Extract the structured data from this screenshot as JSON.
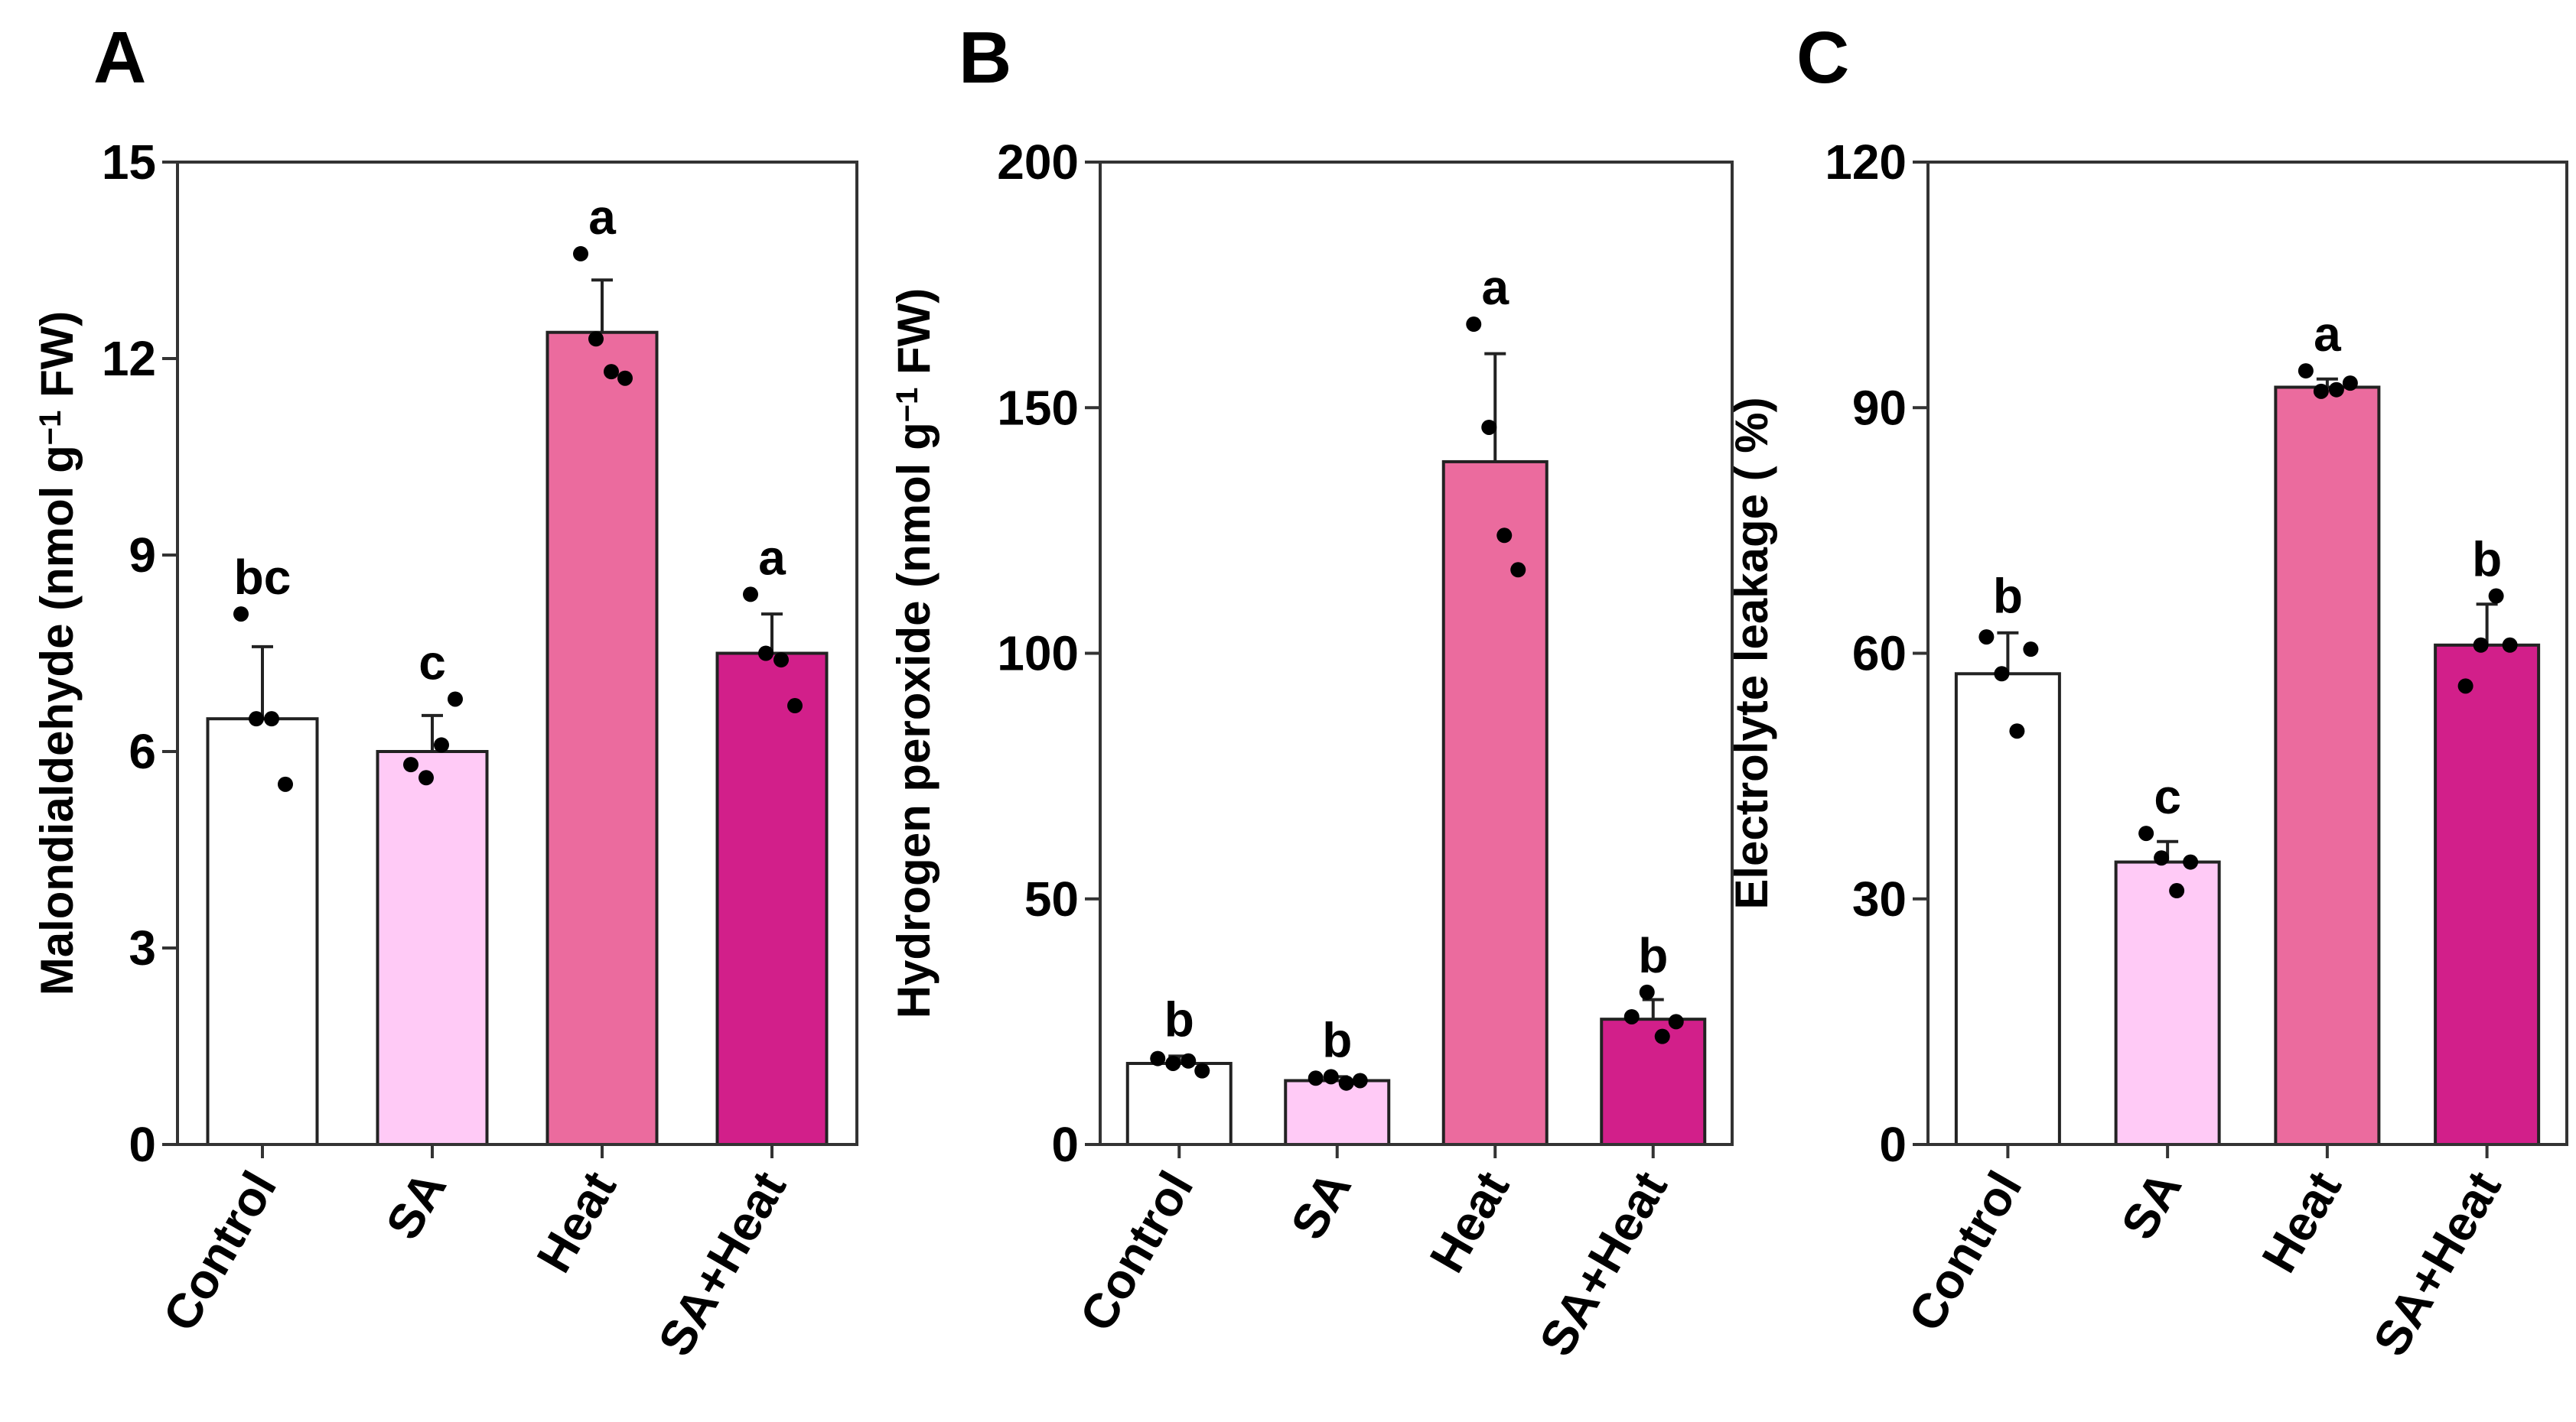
{
  "chart_data": [
    {
      "panel": "A",
      "type": "bar",
      "ylabel_parts": [
        "Malondialdehyde (nmol g",
        "−1",
        " FW)"
      ],
      "categories": [
        "Control",
        "SA",
        "Heat",
        "SA+Heat"
      ],
      "values": [
        6.5,
        6.0,
        12.4,
        7.5
      ],
      "errors": [
        1.1,
        0.55,
        0.8,
        0.6
      ],
      "letters": [
        "bc",
        "c",
        "a",
        "a"
      ],
      "points": [
        [
          8.1,
          6.5,
          6.5,
          5.5
        ],
        [
          5.8,
          5.6,
          6.1,
          6.8
        ],
        [
          13.6,
          12.3,
          11.8,
          11.7
        ],
        [
          8.4,
          7.5,
          7.4,
          6.7
        ]
      ],
      "colors": [
        "#ffffff",
        "#ffcaf6",
        "#eb6b9e",
        "#d21f8a"
      ],
      "ylim": [
        0,
        15
      ],
      "yticks": [
        0,
        3,
        6,
        9,
        12,
        15
      ]
    },
    {
      "panel": "B",
      "type": "bar",
      "ylabel_parts": [
        "Hydrogen peroxide (nmol g",
        "−1",
        " FW)"
      ],
      "categories": [
        "Control",
        "SA",
        "Heat",
        "SA+Heat"
      ],
      "values": [
        16.5,
        13,
        139,
        25.5
      ],
      "errors": [
        1.5,
        0.8,
        22,
        4
      ],
      "letters": [
        "b",
        "b",
        "a",
        "b"
      ],
      "points": [
        [
          17.5,
          16.5,
          17,
          15
        ],
        [
          13.5,
          13.8,
          12.5,
          13
        ],
        [
          167,
          146,
          124,
          117
        ],
        [
          26,
          31,
          22,
          25
        ]
      ],
      "colors": [
        "#ffffff",
        "#ffcaf6",
        "#eb6b9e",
        "#d21f8a"
      ],
      "ylim": [
        0,
        200
      ],
      "yticks": [
        0,
        50,
        100,
        150,
        200
      ]
    },
    {
      "panel": "C",
      "type": "bar",
      "ylabel_parts": [
        "Electrolyte leakage ( %)"
      ],
      "categories": [
        "Control",
        "SA",
        "Heat",
        "SA+Heat"
      ],
      "values": [
        57.5,
        34.5,
        92.5,
        61
      ],
      "errors": [
        5,
        2.5,
        1,
        5
      ],
      "letters": [
        "b",
        "c",
        "a",
        "b"
      ],
      "points": [
        [
          62,
          57.5,
          50.5,
          60.5
        ],
        [
          38,
          35,
          31,
          34.5
        ],
        [
          94.5,
          92,
          92.2,
          93
        ],
        [
          56,
          61,
          67,
          61
        ]
      ],
      "colors": [
        "#ffffff",
        "#ffcaf6",
        "#eb6b9e",
        "#d21f8a"
      ],
      "ylim": [
        0,
        120
      ],
      "yticks": [
        0,
        30,
        60,
        90,
        120
      ]
    }
  ]
}
